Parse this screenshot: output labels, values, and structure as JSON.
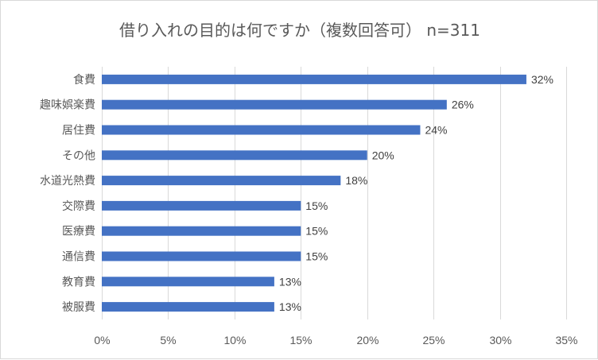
{
  "chart_data": {
    "type": "bar",
    "orientation": "horizontal",
    "title": "借り入れの目的は何ですか（複数回答可） n=311",
    "categories": [
      "食費",
      "趣味娯楽費",
      "居住費",
      "その他",
      "水道光熱費",
      "交際費",
      "医療費",
      "通信費",
      "教育費",
      "被服費"
    ],
    "values": [
      32,
      26,
      24,
      20,
      18,
      15,
      15,
      15,
      13,
      13
    ],
    "value_labels": [
      "32%",
      "26%",
      "24%",
      "20%",
      "18%",
      "15%",
      "15%",
      "15%",
      "13%",
      "13%"
    ],
    "xlim": [
      0,
      35
    ],
    "xticks": [
      0,
      5,
      10,
      15,
      20,
      25,
      30,
      35
    ],
    "xtick_labels": [
      "0%",
      "5%",
      "10%",
      "15%",
      "20%",
      "25%",
      "30%",
      "35%"
    ],
    "grid": "vertical",
    "legend": "none",
    "bar_color": "#4472c4",
    "xlabel": "",
    "ylabel": ""
  }
}
